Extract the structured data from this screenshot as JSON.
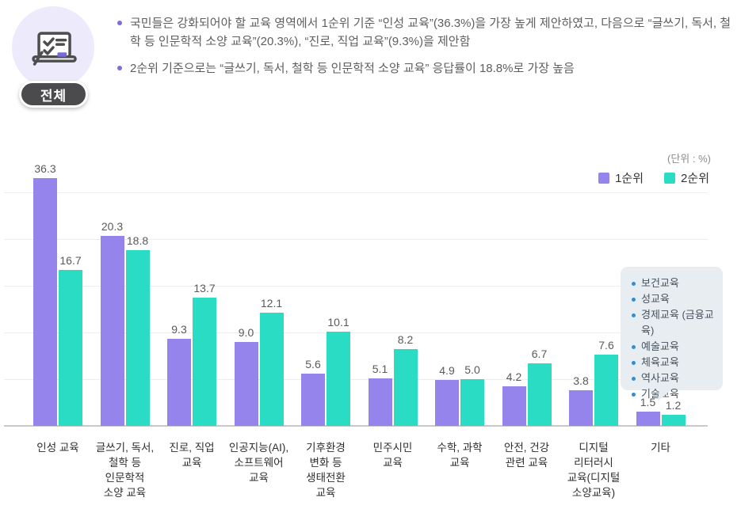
{
  "header": {
    "badge": "전체",
    "bullets": [
      "국민들은 강화되어야 할 교육 영역에서 1순위 기준 “인성 교육”(36.3%)을 가장 높게 제안하였고, 다음으로 “글쓰기, 독서, 철학 등 인문학적 소양 교육”(20.3%), “진로, 직업 교육”(9.3%)을 제안함",
      "2순위 기준으로는 “글쓰기, 독서, 철학 등 인문학적 소양 교육” 응답률이 18.8%로 가장 높음"
    ]
  },
  "chart": {
    "unit_label": "(단위 : %)",
    "colors": {
      "rank1": "#9484EB",
      "rank2": "#2BDCC4",
      "grid": "#EDEDED",
      "axis": "#C9C9C9",
      "value_label": "#5A5A5A"
    }
  },
  "chart_data": {
    "type": "bar",
    "unit": "%",
    "categories": [
      "인성 교육",
      "글쓰기, 독서,\n철학 등\n인문학적\n소양 교육",
      "진로, 직업\n교육",
      "인공지능(AI),\n소프트웨어\n교육",
      "기후환경\n변화 등\n생태전환\n교육",
      "민주시민\n교육",
      "수학, 과학\n교육",
      "안전, 건강\n관련 교육",
      "디지털\n리터러시\n교육(디지털\n소양교육)",
      "기타"
    ],
    "series": [
      {
        "name": "1순위",
        "color": "#9484EB",
        "values": [
          36.3,
          20.3,
          9.3,
          9.0,
          5.6,
          5.1,
          4.9,
          4.2,
          3.8,
          1.5
        ]
      },
      {
        "name": "2순위",
        "color": "#2BDCC4",
        "values": [
          16.7,
          18.8,
          13.7,
          12.1,
          10.1,
          8.2,
          5.0,
          6.7,
          7.6,
          1.2
        ]
      }
    ],
    "ylim": [
      0,
      40
    ],
    "gridline_interval": 5,
    "grid": true,
    "legend_position": "top-right",
    "value_labels": true
  },
  "callout": {
    "items": [
      "보건교육",
      "성교육",
      "경제교육 (금융교육)",
      "예술교육",
      "체육교육",
      "역사교육",
      "기술교육"
    ],
    "bg": "#E8EDF2",
    "bullet_color": "#2E8FD6"
  }
}
